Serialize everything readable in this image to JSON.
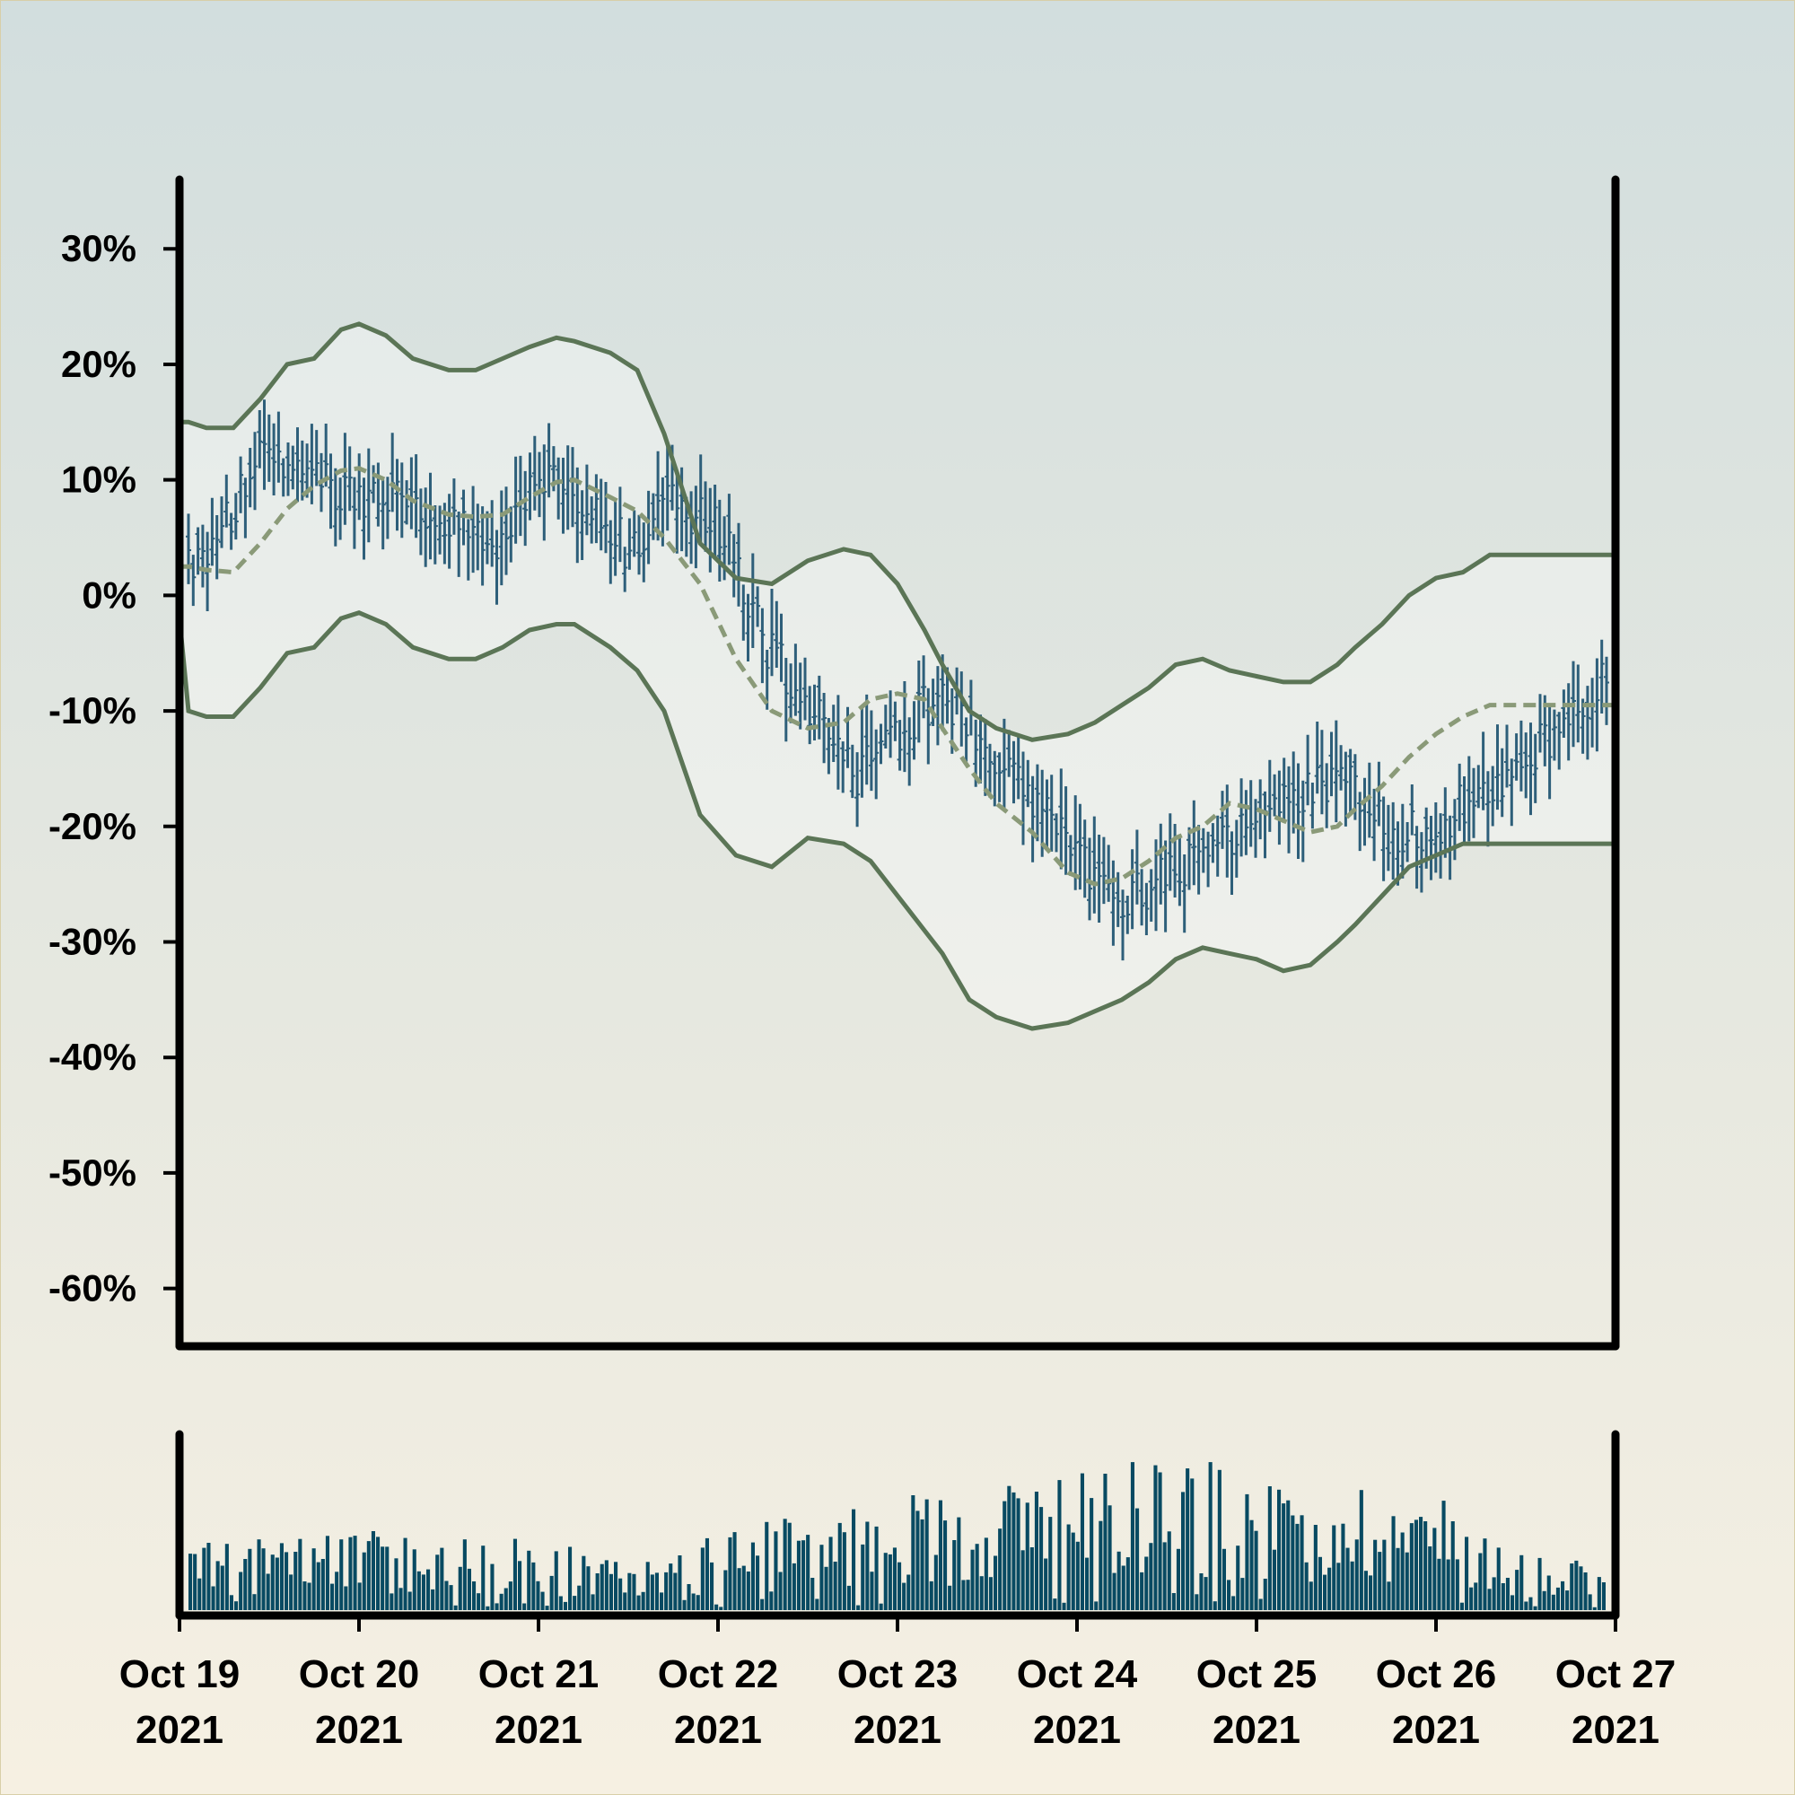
{
  "chart_data": [
    {
      "type": "ohlc",
      "title": "",
      "xlabel": "",
      "ylabel": "",
      "x_range": [
        "2021-10-19",
        "2021-10-27"
      ],
      "ylim": [
        -65,
        36
      ],
      "y_ticks": [
        30,
        20,
        10,
        0,
        -10,
        -20,
        -30,
        -40,
        -50,
        -60
      ],
      "y_tick_labels": [
        "30%",
        "20%",
        "10%",
        "0%",
        "-10%",
        "-20%",
        "-30%",
        "-40%",
        "-50%",
        "-60%"
      ],
      "x_ticks": [
        "2021-10-19",
        "2021-10-20",
        "2021-10-21",
        "2021-10-22",
        "2021-10-23",
        "2021-10-24",
        "2021-10-25",
        "2021-10-26",
        "2021-10-27"
      ],
      "x_tick_labels": [
        [
          "Oct 19",
          "2021"
        ],
        [
          "Oct 20",
          "2021"
        ],
        [
          "Oct 21",
          "2021"
        ],
        [
          "Oct 22",
          "2021"
        ],
        [
          "Oct 23",
          "2021"
        ],
        [
          "Oct 24",
          "2021"
        ],
        [
          "Oct 25",
          "2021"
        ],
        [
          "Oct 26",
          "2021"
        ],
        [
          "Oct 27",
          "2021"
        ]
      ],
      "price_trend": {
        "days": [
          0.05,
          0.25,
          0.5,
          0.75,
          1.0,
          1.25,
          1.5,
          1.75,
          2.0,
          2.25,
          2.5,
          2.75,
          3.0,
          3.25,
          3.5,
          3.75,
          4.0,
          4.25,
          4.5,
          4.75,
          5.0,
          5.25,
          5.5,
          5.75,
          6.0,
          6.25,
          6.5,
          6.75,
          7.0,
          7.25,
          7.5,
          7.75,
          7.95
        ],
        "values": [
          3,
          6,
          13,
          10,
          8,
          9,
          6,
          4,
          11,
          8,
          4,
          8,
          6,
          -4,
          -9,
          -16,
          -12,
          -8,
          -14,
          -18,
          -22,
          -27,
          -24,
          -22,
          -19,
          -17,
          -16,
          -21,
          -20,
          -17,
          -14,
          -11,
          -6
        ]
      },
      "bands": {
        "days": [
          0.0,
          0.05,
          0.15,
          0.3,
          0.45,
          0.6,
          0.75,
          0.9,
          1.0,
          1.15,
          1.3,
          1.5,
          1.65,
          1.8,
          1.95,
          2.1,
          2.2,
          2.4,
          2.55,
          2.7,
          2.9,
          3.1,
          3.3,
          3.5,
          3.7,
          3.85,
          4.0,
          4.15,
          4.25,
          4.4,
          4.55,
          4.75,
          4.95,
          5.1,
          5.25,
          5.4,
          5.55,
          5.7,
          5.85,
          6.0,
          6.15,
          6.3,
          6.45,
          6.55,
          6.7,
          6.85,
          7.0,
          7.15,
          7.3,
          7.45,
          7.6,
          7.75,
          7.9,
          8.0
        ],
        "middle": [
          2.5,
          2.5,
          2.2,
          2.0,
          4.5,
          7.5,
          9.5,
          10.8,
          11.0,
          10.0,
          8.2,
          7.0,
          6.8,
          7.0,
          8.5,
          9.8,
          10.0,
          8.5,
          7.3,
          5.0,
          1.0,
          -5.5,
          -10.0,
          -11.5,
          -11.0,
          -9.0,
          -8.5,
          -9.0,
          -11.5,
          -15.0,
          -18.0,
          -20.5,
          -24.0,
          -25.0,
          -24.5,
          -23.0,
          -21.0,
          -20.0,
          -18.0,
          -18.5,
          -19.5,
          -20.5,
          -20.0,
          -18.5,
          -16.5,
          -14.0,
          -12.0,
          -10.5,
          -9.5,
          -9.5,
          -9.5,
          -9.5,
          -9.5,
          -9.5
        ],
        "upper": [
          15.0,
          15.0,
          14.5,
          14.5,
          17.0,
          20.0,
          20.5,
          23.0,
          23.5,
          22.5,
          20.5,
          19.5,
          19.5,
          20.5,
          21.5,
          22.3,
          22.0,
          21.0,
          19.5,
          14.0,
          4.5,
          1.5,
          1.0,
          3.0,
          4.0,
          3.5,
          1.0,
          -3.0,
          -6.0,
          -10.0,
          -11.5,
          -12.5,
          -12.0,
          -11.0,
          -9.5,
          -8.0,
          -6.0,
          -5.5,
          -6.5,
          -7.0,
          -7.5,
          -7.5,
          -6.0,
          -4.5,
          -2.5,
          0.0,
          1.5,
          2.0,
          3.5,
          3.5,
          3.5,
          3.5,
          3.5,
          3.5
        ],
        "lower": [
          -2.0,
          -10.0,
          -10.5,
          -10.5,
          -8.0,
          -5.0,
          -4.5,
          -2.0,
          -1.5,
          -2.5,
          -4.5,
          -5.5,
          -5.5,
          -4.5,
          -3.0,
          -2.5,
          -2.5,
          -4.5,
          -6.5,
          -10.0,
          -19.0,
          -22.5,
          -23.5,
          -21.0,
          -21.5,
          -23.0,
          -26.0,
          -29.0,
          -31.0,
          -35.0,
          -36.5,
          -37.5,
          -37.0,
          -36.0,
          -35.0,
          -33.5,
          -31.5,
          -30.5,
          -31.0,
          -31.5,
          -32.5,
          -32.0,
          -30.0,
          -28.5,
          -26.0,
          -23.5,
          -22.5,
          -21.5,
          -21.5,
          -21.5,
          -21.5,
          -21.5,
          -21.5,
          -21.5
        ]
      },
      "colors": {
        "bars": "#2e5f7a",
        "bands": "#5b7556",
        "middle": "#8a9a78",
        "axis": "#000000"
      }
    },
    {
      "type": "bar",
      "title": "",
      "xlabel": "",
      "ylabel": "",
      "x_range": [
        "2021-10-19",
        "2021-10-27"
      ],
      "volume_trend": {
        "days": [
          0.0,
          0.5,
          1.0,
          1.5,
          2.0,
          2.5,
          3.0,
          3.5,
          4.0,
          4.5,
          5.0,
          5.5,
          6.0,
          6.5,
          7.0,
          7.5,
          8.0
        ],
        "values": [
          0.35,
          0.33,
          0.38,
          0.36,
          0.34,
          0.22,
          0.38,
          0.45,
          0.55,
          0.58,
          0.75,
          0.78,
          0.6,
          0.62,
          0.55,
          0.28,
          0.3
        ]
      },
      "colors": {
        "bars": "#084a62"
      }
    }
  ]
}
